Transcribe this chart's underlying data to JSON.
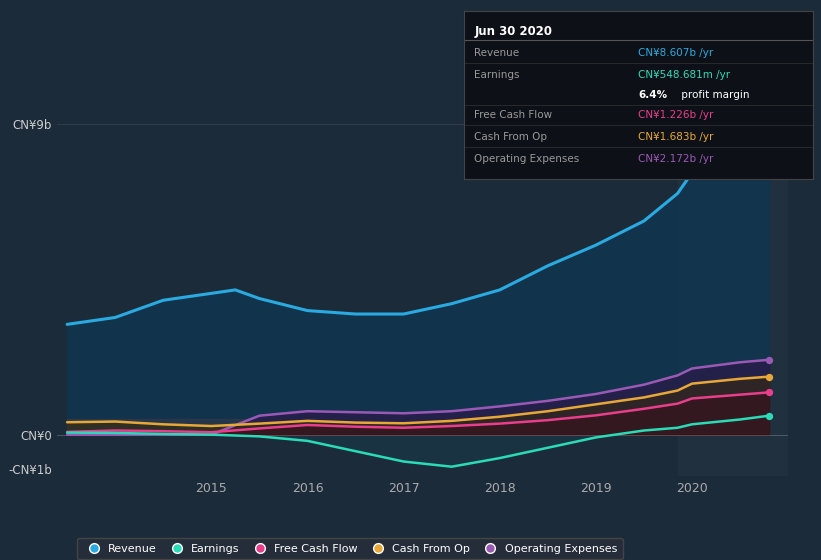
{
  "background_color": "#1c2b3a",
  "plot_bg_color": "#1c2b3a",
  "ylim": [
    -1.2,
    10.5
  ],
  "xlim": [
    2013.4,
    2021.0
  ],
  "yticks": [
    9,
    0,
    -1
  ],
  "ytick_labels": [
    "CN¥9b",
    "CN¥0",
    "-CN¥1b"
  ],
  "xticks": [
    2015,
    2016,
    2017,
    2018,
    2019,
    2020
  ],
  "highlight_x_start": 2019.85,
  "series": {
    "Revenue": {
      "color": "#29abe2",
      "fill_alpha": 0.85,
      "fill_color": "#103550",
      "x": [
        2013.5,
        2014.0,
        2014.5,
        2015.0,
        2015.25,
        2015.5,
        2016.0,
        2016.5,
        2017.0,
        2017.5,
        2018.0,
        2018.5,
        2019.0,
        2019.5,
        2019.85,
        2020.0,
        2020.5,
        2020.8
      ],
      "y": [
        3.2,
        3.4,
        3.9,
        4.1,
        4.2,
        3.95,
        3.6,
        3.5,
        3.5,
        3.8,
        4.2,
        4.9,
        5.5,
        6.2,
        7.0,
        7.6,
        8.4,
        8.607
      ]
    },
    "Operating Expenses": {
      "color": "#9b59b6",
      "fill_color": "#2a1a4a",
      "fill_alpha": 0.75,
      "x": [
        2013.5,
        2014.0,
        2014.5,
        2015.0,
        2015.5,
        2016.0,
        2016.5,
        2017.0,
        2017.5,
        2018.0,
        2018.5,
        2019.0,
        2019.5,
        2019.85,
        2020.0,
        2020.5,
        2020.8
      ],
      "y": [
        0.0,
        0.0,
        0.0,
        0.0,
        0.55,
        0.68,
        0.65,
        0.62,
        0.68,
        0.82,
        0.98,
        1.18,
        1.45,
        1.72,
        1.92,
        2.1,
        2.172
      ]
    },
    "Cash From Op": {
      "color": "#e8a838",
      "fill_color": "#3a2a0a",
      "fill_alpha": 0.6,
      "x": [
        2013.5,
        2014.0,
        2014.5,
        2015.0,
        2015.5,
        2016.0,
        2016.5,
        2017.0,
        2017.5,
        2018.0,
        2018.5,
        2019.0,
        2019.5,
        2019.85,
        2020.0,
        2020.5,
        2020.8
      ],
      "y": [
        0.36,
        0.38,
        0.3,
        0.25,
        0.32,
        0.4,
        0.35,
        0.33,
        0.4,
        0.52,
        0.68,
        0.88,
        1.08,
        1.28,
        1.48,
        1.62,
        1.683
      ]
    },
    "Free Cash Flow": {
      "color": "#e83e8c",
      "fill_color": "#3a0a1a",
      "fill_alpha": 0.5,
      "x": [
        2013.5,
        2014.0,
        2014.5,
        2015.0,
        2015.5,
        2016.0,
        2016.5,
        2017.0,
        2017.5,
        2018.0,
        2018.5,
        2019.0,
        2019.5,
        2019.85,
        2020.0,
        2020.5,
        2020.8
      ],
      "y": [
        0.08,
        0.12,
        0.1,
        0.07,
        0.18,
        0.28,
        0.23,
        0.2,
        0.25,
        0.32,
        0.42,
        0.56,
        0.75,
        0.9,
        1.05,
        1.16,
        1.226
      ]
    },
    "Earnings": {
      "color": "#2adbb8",
      "fill_color": "#0a2a1a",
      "fill_alpha": 0.5,
      "x": [
        2013.5,
        2014.0,
        2014.5,
        2015.0,
        2015.5,
        2016.0,
        2016.5,
        2017.0,
        2017.5,
        2018.0,
        2018.5,
        2019.0,
        2019.5,
        2019.85,
        2020.0,
        2020.5,
        2020.8
      ],
      "y": [
        0.06,
        0.05,
        0.02,
        0.0,
        -0.05,
        -0.18,
        -0.48,
        -0.78,
        -0.93,
        -0.68,
        -0.38,
        -0.08,
        0.12,
        0.2,
        0.3,
        0.44,
        0.549
      ]
    }
  },
  "info_box": {
    "title": "Jun 30 2020",
    "rows": [
      {
        "label": "Revenue",
        "value": "CN¥8.607b /yr",
        "value_color": "#29abe2"
      },
      {
        "label": "Earnings",
        "value": "CN¥548.681m /yr",
        "value_color": "#2adbb8",
        "sub": "6.4% profit margin"
      },
      {
        "label": "Free Cash Flow",
        "value": "CN¥1.226b /yr",
        "value_color": "#e83e8c"
      },
      {
        "label": "Cash From Op",
        "value": "CN¥1.683b /yr",
        "value_color": "#e8a838"
      },
      {
        "label": "Operating Expenses",
        "value": "CN¥2.172b /yr",
        "value_color": "#9b59b6"
      }
    ]
  },
  "legend": [
    {
      "label": "Revenue",
      "color": "#29abe2"
    },
    {
      "label": "Earnings",
      "color": "#2adbb8"
    },
    {
      "label": "Free Cash Flow",
      "color": "#e83e8c"
    },
    {
      "label": "Cash From Op",
      "color": "#e8a838"
    },
    {
      "label": "Operating Expenses",
      "color": "#9b59b6"
    }
  ]
}
